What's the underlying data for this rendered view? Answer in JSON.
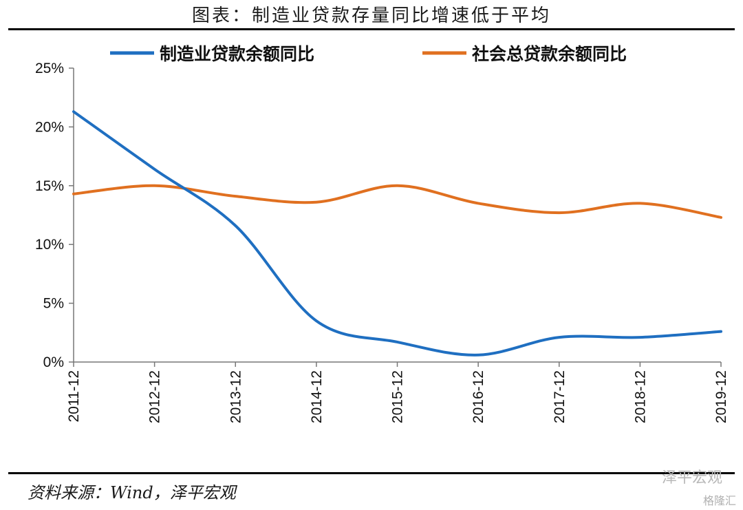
{
  "title": "图表：制造业贷款存量同比增速低于平均",
  "source": "资料来源：Wind，泽平宏观",
  "watermark": "泽平宏观",
  "watermark2": "格隆汇",
  "chart_data": {
    "type": "line",
    "categories": [
      "2011-12",
      "2012-12",
      "2013-12",
      "2014-12",
      "2015-12",
      "2016-12",
      "2017-12",
      "2018-12",
      "2019-12"
    ],
    "series": [
      {
        "name": "制造业贷款余额同比",
        "color": "#1f6fc1",
        "values": [
          21.3,
          16.4,
          11.6,
          3.5,
          1.7,
          0.6,
          2.1,
          2.1,
          2.6
        ]
      },
      {
        "name": "社会总贷款余额同比",
        "color": "#e07020",
        "values": [
          14.3,
          15.0,
          14.1,
          13.6,
          15.0,
          13.5,
          12.7,
          13.5,
          12.3
        ]
      }
    ],
    "y_ticks": [
      "25%",
      "20%",
      "15%",
      "10%",
      "5%",
      "0%"
    ],
    "ylim": [
      0,
      25
    ],
    "legend_position": "top"
  }
}
